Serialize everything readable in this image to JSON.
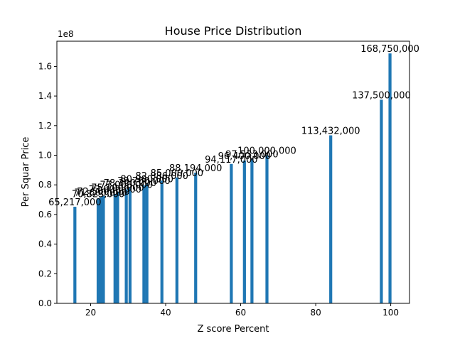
{
  "chart_data": {
    "type": "bar",
    "title": "House Price Distribution",
    "xlabel": "Z score Percent",
    "ylabel": "Per Squar Price",
    "y_offset_text": "1e8",
    "xlim": [
      11,
      105
    ],
    "ylim": [
      0,
      177000000
    ],
    "x_ticks": [
      20,
      40,
      60,
      80,
      100
    ],
    "x_tick_labels": [
      "20",
      "40",
      "60",
      "80",
      "100"
    ],
    "y_ticks": [
      0,
      20000000,
      40000000,
      60000000,
      80000000,
      100000000,
      120000000,
      140000000,
      160000000
    ],
    "y_tick_labels": [
      "0.0",
      "0.2",
      "0.4",
      "0.6",
      "0.8",
      "1.0",
      "1.2",
      "1.4",
      "1.6"
    ],
    "bar_width": 0.8,
    "bar_color": "#1f77b4",
    "grid": false,
    "legend": "none",
    "points": [
      {
        "x": 15.8,
        "y": 65217000,
        "label": "65,217,000"
      },
      {
        "x": 22.0,
        "y": 70823000,
        "label": "70,823,000"
      },
      {
        "x": 22.7,
        "y": 71600000,
        "label": "71,600,000"
      },
      {
        "x": 23.4,
        "y": 72500000,
        "label": "72,500,000"
      },
      {
        "x": 26.5,
        "y": 73900000,
        "label": "73,900,000"
      },
      {
        "x": 27.2,
        "y": 75100000,
        "label": "75,100,000"
      },
      {
        "x": 29.5,
        "y": 77000000,
        "label": "77,000,000"
      },
      {
        "x": 30.5,
        "y": 78300000,
        "label": "78,300,000"
      },
      {
        "x": 34.2,
        "y": 79700000,
        "label": "79,700,000"
      },
      {
        "x": 35.0,
        "y": 80900000,
        "label": "80,900,000"
      },
      {
        "x": 39.0,
        "y": 82886000,
        "label": "82,886,000"
      },
      {
        "x": 43.0,
        "y": 85000000,
        "label": "85,000,000"
      },
      {
        "x": 48.0,
        "y": 88194000,
        "label": "88,194,000"
      },
      {
        "x": 57.5,
        "y": 94117000,
        "label": "94,117,000"
      },
      {
        "x": 61.0,
        "y": 96400000,
        "label": "96,400,000"
      },
      {
        "x": 63.0,
        "y": 97533000,
        "label": "97,533,000"
      },
      {
        "x": 67.0,
        "y": 100000000,
        "label": "100,000,000"
      },
      {
        "x": 84.0,
        "y": 113432000,
        "label": "113,432,000"
      },
      {
        "x": 97.5,
        "y": 137500000,
        "label": "137,500,000"
      },
      {
        "x": 99.8,
        "y": 168750000,
        "label": "168,750,000"
      }
    ]
  }
}
